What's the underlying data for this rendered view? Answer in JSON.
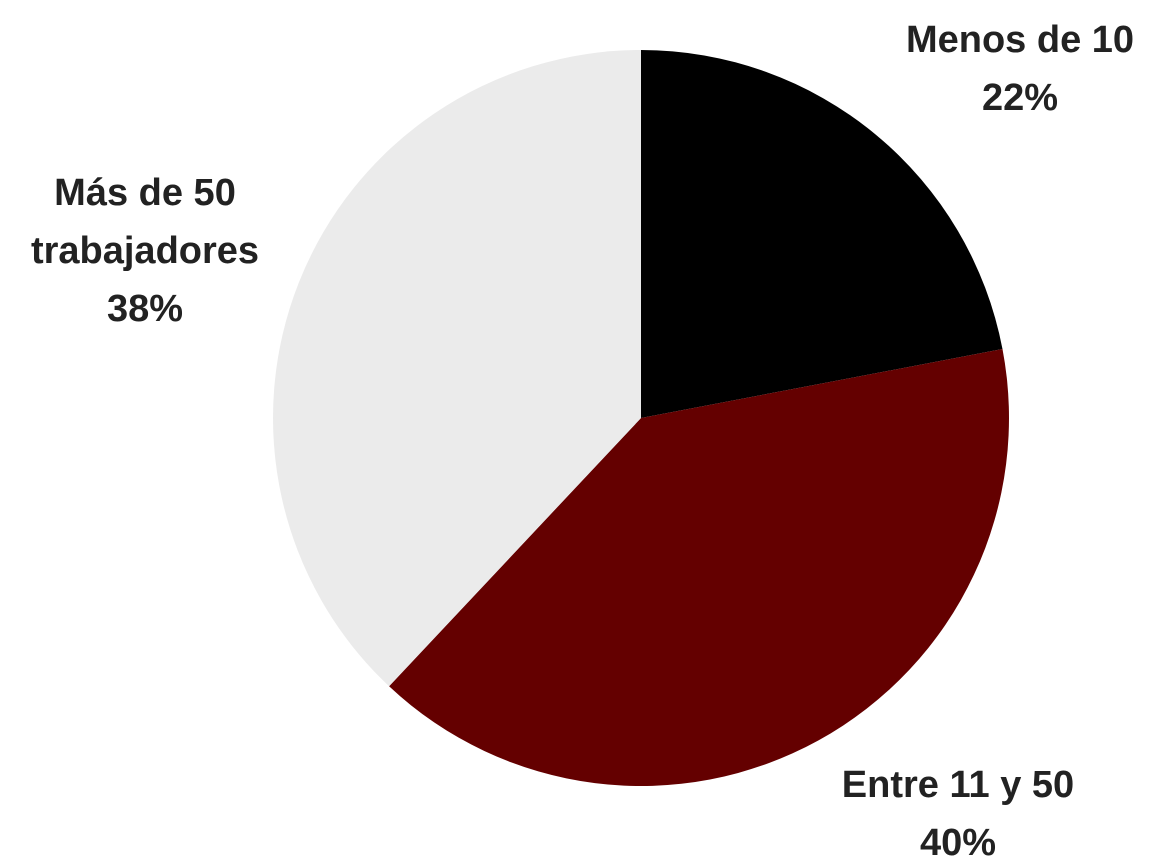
{
  "chart_data": {
    "type": "pie",
    "title": "",
    "start_angle_deg": 0,
    "direction": "clockwise",
    "slices": [
      {
        "label_lines": [
          "Menos de 10"
        ],
        "percent_label": "22%",
        "value": 22,
        "color": "#000000"
      },
      {
        "label_lines": [
          "Entre 11 y 50"
        ],
        "percent_label": "40%",
        "value": 40,
        "color": "#640000"
      },
      {
        "label_lines": [
          "Más de 50",
          "trabajadores"
        ],
        "percent_label": "38%",
        "value": 38,
        "color": "#ebebeb"
      }
    ]
  }
}
